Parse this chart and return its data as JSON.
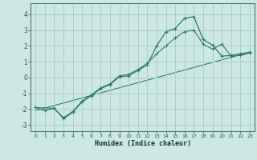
{
  "xlabel": "Humidex (Indice chaleur)",
  "background_color": "#cde8e2",
  "line_color": "#2d7a6e",
  "grid_color": "#aacfc8",
  "xlim": [
    -0.5,
    23.5
  ],
  "ylim": [
    -3.4,
    4.7
  ],
  "xticks": [
    0,
    1,
    2,
    3,
    4,
    5,
    6,
    7,
    8,
    9,
    10,
    11,
    12,
    13,
    14,
    15,
    16,
    17,
    18,
    19,
    20,
    21,
    22,
    23
  ],
  "yticks": [
    -3,
    -2,
    -1,
    0,
    1,
    2,
    3,
    4
  ],
  "series1_x": [
    0,
    1,
    2,
    3,
    4,
    5,
    6,
    7,
    8,
    9,
    10,
    11,
    12,
    13,
    14,
    15,
    16,
    17,
    18,
    19,
    20,
    21,
    22,
    23
  ],
  "series1_y": [
    -1.9,
    -2.1,
    -1.95,
    -2.6,
    -2.2,
    -1.55,
    -1.15,
    -0.7,
    -0.45,
    0.05,
    0.1,
    0.45,
    0.8,
    2.0,
    2.9,
    3.1,
    3.75,
    3.85,
    2.4,
    2.05,
    1.35,
    1.4,
    1.5,
    1.6
  ],
  "series2_x": [
    0,
    2,
    3,
    4,
    5,
    6,
    7,
    8,
    9,
    10,
    11,
    12,
    13,
    14,
    15,
    16,
    17,
    18,
    19,
    20,
    21,
    22,
    23
  ],
  "series2_y": [
    -1.9,
    -1.95,
    -2.55,
    -2.15,
    -1.5,
    -1.1,
    -0.65,
    -0.4,
    0.1,
    0.2,
    0.5,
    0.9,
    1.5,
    2.0,
    2.5,
    2.9,
    3.0,
    2.1,
    1.8,
    2.1,
    1.35,
    1.4,
    1.55
  ],
  "trend_x": [
    0,
    23
  ],
  "trend_y": [
    -2.1,
    1.6
  ]
}
